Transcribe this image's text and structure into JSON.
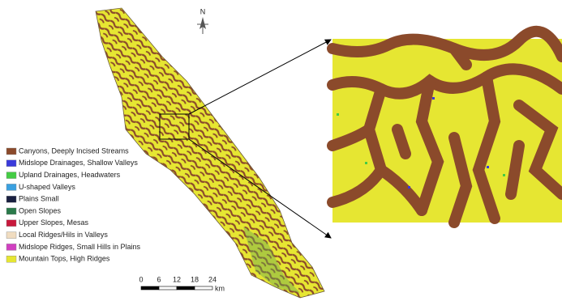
{
  "north_arrow": {
    "label": "N"
  },
  "legend": {
    "items": [
      {
        "label": "Canyons, Deeply Incised Streams",
        "color": "#8b4a2b"
      },
      {
        "label": "Midslope Drainages, Shallow Valleys",
        "color": "#3a3adb"
      },
      {
        "label": "Upland Drainages, Headwaters",
        "color": "#44cc44"
      },
      {
        "label": "U-shaped Valleys",
        "color": "#3aa0e0"
      },
      {
        "label": "Plains Small",
        "color": "#1a2040"
      },
      {
        "label": "Open Slopes",
        "color": "#2a7a4a"
      },
      {
        "label": "Upper Slopes, Mesas",
        "color": "#c8183c"
      },
      {
        "label": "Local Ridges/Hils in Valleys",
        "color": "#f0dcc0"
      },
      {
        "label": "Midslope Ridges, Small Hills in Plains",
        "color": "#d040c0"
      },
      {
        "label": "Mountain Tops, High Ridges",
        "color": "#e6e632"
      }
    ]
  },
  "scale_bar": {
    "ticks": [
      0,
      6,
      12,
      18,
      24
    ],
    "unit": "km"
  }
}
